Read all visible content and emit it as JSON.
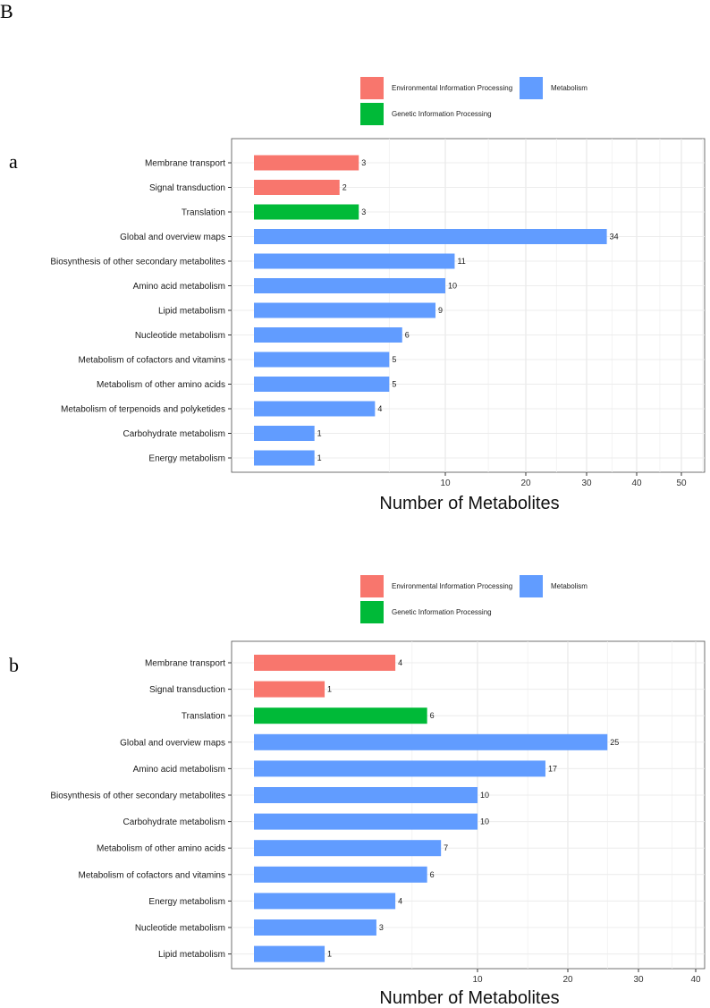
{
  "figure_letter": "B",
  "colors": {
    "Environmental Information Processing": "#F8766D",
    "Genetic Information Processing": "#00BA38",
    "Metabolism": "#619CFF"
  },
  "legend": [
    {
      "label": "Environmental Information Processing",
      "color": "#F8766D"
    },
    {
      "label": "Metabolism",
      "color": "#619CFF"
    },
    {
      "label": "Genetic Information Processing",
      "color": "#00BA38"
    }
  ],
  "chart_data": [
    {
      "panel": "a",
      "type": "bar",
      "orientation": "horizontal",
      "xlabel": "Number of Metabolites",
      "x_scale": "sqrt",
      "xlim": [
        0,
        55
      ],
      "xticks": [
        10,
        20,
        30,
        40,
        50
      ],
      "categories": [
        "Membrane transport",
        "Signal transduction",
        "Translation",
        "Global and overview maps",
        "Biosynthesis of other secondary metabolites",
        "Amino acid metabolism",
        "Lipid metabolism",
        "Nucleotide metabolism",
        "Metabolism of cofactors and vitamins",
        "Metabolism of other amino acids",
        "Metabolism of terpenoids and polyketides",
        "Carbohydrate metabolism",
        "Energy metabolism"
      ],
      "values": [
        3,
        2,
        3,
        34,
        11,
        10,
        9,
        6,
        5,
        5,
        4,
        1,
        1
      ],
      "groups": [
        "Environmental Information Processing",
        "Environmental Information Processing",
        "Genetic Information Processing",
        "Metabolism",
        "Metabolism",
        "Metabolism",
        "Metabolism",
        "Metabolism",
        "Metabolism",
        "Metabolism",
        "Metabolism",
        "Metabolism",
        "Metabolism"
      ]
    },
    {
      "panel": "b",
      "type": "bar",
      "orientation": "horizontal",
      "xlabel": "Number of Metabolites",
      "x_scale": "sqrt",
      "xlim": [
        0,
        42
      ],
      "xticks": [
        10,
        20,
        30,
        40
      ],
      "categories": [
        "Membrane transport",
        "Signal transduction",
        "Translation",
        "Global and overview maps",
        "Amino acid metabolism",
        "Biosynthesis of other secondary metabolites",
        "Carbohydrate metabolism",
        "Metabolism of other amino acids",
        "Metabolism of cofactors and vitamins",
        "Energy metabolism",
        "Nucleotide metabolism",
        "Lipid metabolism"
      ],
      "values": [
        4,
        1,
        6,
        25,
        17,
        10,
        10,
        7,
        6,
        4,
        3,
        1
      ],
      "groups": [
        "Environmental Information Processing",
        "Environmental Information Processing",
        "Genetic Information Processing",
        "Metabolism",
        "Metabolism",
        "Metabolism",
        "Metabolism",
        "Metabolism",
        "Metabolism",
        "Metabolism",
        "Metabolism",
        "Metabolism"
      ]
    }
  ]
}
